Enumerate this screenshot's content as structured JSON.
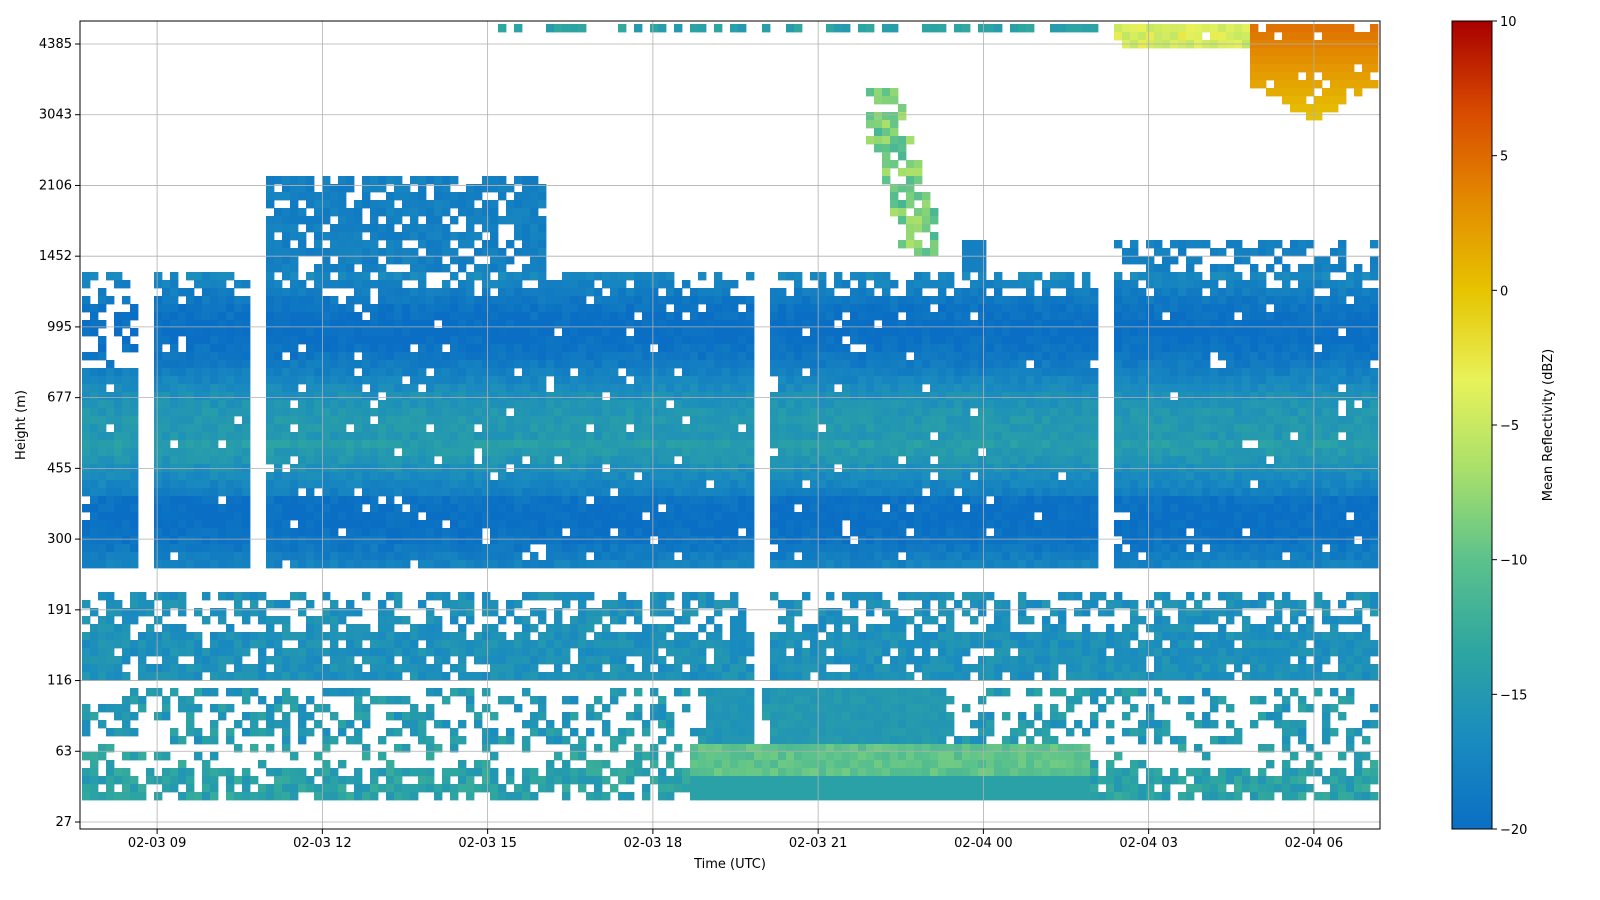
{
  "chart_data": {
    "type": "heatmap",
    "title": "",
    "xlabel": "Time (UTC)",
    "ylabel": "Height (m)",
    "x_ticks": [
      "02-03 09",
      "02-03 12",
      "02-03 15",
      "02-03 18",
      "02-03 21",
      "02-04 00",
      "02-04 03",
      "02-04 06"
    ],
    "x_range_hours": [
      7.6,
      31.2
    ],
    "y_ticks": [
      "27",
      "63",
      "116",
      "191",
      "300",
      "455",
      "677",
      "995",
      "1452",
      "2106",
      "3043",
      "4385"
    ],
    "y_scale": "nonlinear (equal spacing per tick)",
    "grid": true,
    "colorbar": {
      "label": "Mean Reflectivity (dBZ)",
      "ticks": [
        "10",
        "5",
        "0",
        "−5",
        "−10",
        "−15",
        "−20"
      ],
      "range": [
        -20,
        10
      ],
      "colormap": [
        "#0a6fc4",
        "#1a8bbf",
        "#2ea6a0",
        "#5cc28c",
        "#a8e06a",
        "#e8f25a",
        "#e6c400",
        "#e38a00",
        "#d84a00",
        "#a80000"
      ]
    },
    "features": [
      {
        "desc": "dense low-reflectivity band",
        "height_range": "300–1452",
        "dBZ": -17
      },
      {
        "desc": "upper cloud layer",
        "height_range": "1452–2500",
        "time_range": "02-03 11:30–02-03 16:00",
        "dBZ": -17.5
      },
      {
        "desc": "near-surface enhanced band",
        "height_range": "40–63",
        "time_range": "02-03 19:30–02-04 02:30",
        "dBZ": -9
      },
      {
        "desc": "high reflectivity precipitation",
        "height_range": "3500–5000",
        "time_range": "02-04 05:00–02-04 07:00",
        "dBZ": 7
      },
      {
        "desc": "elevated virga plume",
        "height_range": "2000–4000",
        "time_range": "02-03 22:00–02-03 23:30",
        "dBZ": -7
      }
    ]
  }
}
